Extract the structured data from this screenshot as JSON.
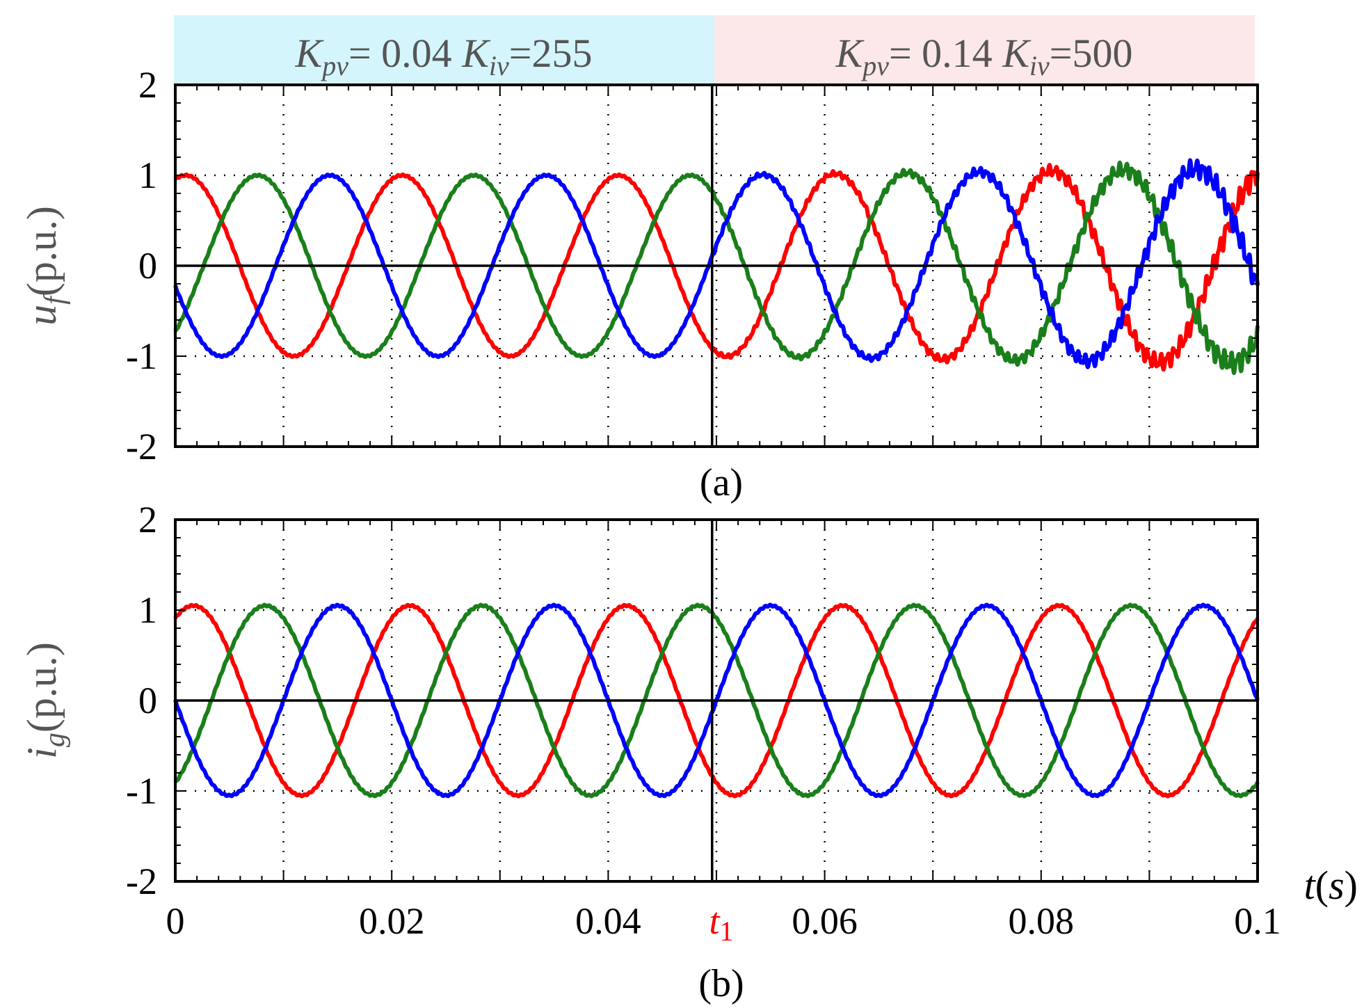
{
  "colors": {
    "phase_a": "#ff0000",
    "phase_b": "#1a7f1a",
    "phase_c": "#0000ff",
    "banner_left_bg": "#d4f5fb",
    "banner_right_bg": "#fce8e8",
    "t1_marker": "#ff0000"
  },
  "banners": {
    "left": {
      "K": "K",
      "pv_sub": "pv",
      "eq1": "= 0.04 ",
      "iv_sub": "iv",
      "eq2": "=255"
    },
    "right": {
      "K": "K",
      "pv_sub": "pv",
      "eq1": "= 0.14 ",
      "iv_sub": "iv",
      "eq2": "=500"
    }
  },
  "x_axis": {
    "ticks": [
      {
        "value": 0,
        "label": "0"
      },
      {
        "value": 0.02,
        "label": "0.02"
      },
      {
        "value": 0.04,
        "label": "0.04"
      },
      {
        "value": 0.06,
        "label": "0.06"
      },
      {
        "value": 0.08,
        "label": "0.08"
      },
      {
        "value": 0.1,
        "label": "0.1"
      }
    ],
    "t1_label": "t",
    "t1_sub": "1",
    "label_t": "t",
    "label_paren_open": "(",
    "label_s": "s",
    "label_paren_close": ")"
  },
  "chart_data": [
    {
      "type": "line",
      "caption": "(a)",
      "ylabel_var": "u",
      "ylabel_sub": "f",
      "ylabel_unit": "(p.u.)",
      "xlim": [
        0,
        0.1
      ],
      "ylim": [
        -2,
        2
      ],
      "yticks": [
        {
          "value": 2,
          "label": "2"
        },
        {
          "value": 1,
          "label": "1"
        },
        {
          "value": 0,
          "label": "0"
        },
        {
          "value": -1,
          "label": "-1"
        },
        {
          "value": -2,
          "label": "-2"
        }
      ],
      "grid": true,
      "frequency_hz": 50,
      "switch_time_s": 0.0496,
      "series": [
        {
          "color_key": "phase_a",
          "amplitude": 1.0,
          "phase_deg": 73,
          "ripple_after_switch": true
        },
        {
          "color_key": "phase_b",
          "amplitude": 1.0,
          "phase_deg": -47,
          "ripple_after_switch": true
        },
        {
          "color_key": "phase_c",
          "amplitude": 1.0,
          "phase_deg": -167,
          "ripple_after_switch": true
        }
      ]
    },
    {
      "type": "line",
      "caption": "(b)",
      "ylabel_var": "i",
      "ylabel_sub": "g",
      "ylabel_unit": "(p.u.)",
      "xlim": [
        0,
        0.1
      ],
      "ylim": [
        -2,
        2
      ],
      "yticks": [
        {
          "value": 2,
          "label": "2"
        },
        {
          "value": 1,
          "label": "1"
        },
        {
          "value": 0,
          "label": "0"
        },
        {
          "value": -1,
          "label": "-1"
        },
        {
          "value": -2,
          "label": "-2"
        }
      ],
      "grid": true,
      "frequency_hz": 50,
      "switch_time_s": 0.0496,
      "series": [
        {
          "color_key": "phase_a",
          "amplitude": 1.05,
          "phase_deg": 60,
          "ripple_after_switch": false
        },
        {
          "color_key": "phase_b",
          "amplitude": 1.05,
          "phase_deg": -60,
          "ripple_after_switch": false
        },
        {
          "color_key": "phase_c",
          "amplitude": 1.05,
          "phase_deg": -180,
          "ripple_after_switch": false
        }
      ]
    }
  ]
}
